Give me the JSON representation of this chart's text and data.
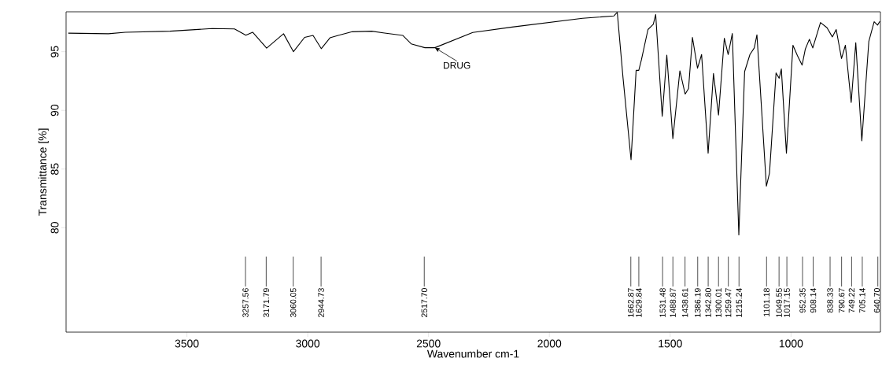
{
  "chart_data": {
    "type": "line",
    "xlabel": "Wavenumber cm-1",
    "ylabel": "Transmittance [%]",
    "xlim": [
      4000,
      630
    ],
    "ylim": [
      71.1,
      98.4
    ],
    "xticks": [
      3500,
      3000,
      2500,
      2000,
      1500,
      1000
    ],
    "yticks": [
      80,
      85,
      90,
      95
    ],
    "grid": false,
    "marker": "none",
    "line_style": "solid",
    "series": [
      {
        "color": "#000000",
        "x": [
          3991,
          3825,
          3755,
          3570,
          3395,
          3303,
          3256,
          3228,
          3170,
          3100,
          3059,
          3013,
          2978,
          2944,
          2908,
          2874,
          2816,
          2735,
          2688,
          2607,
          2572,
          2515,
          2474,
          2317,
          2154,
          1863,
          1733,
          1719,
          1695,
          1662,
          1641,
          1630,
          1619,
          1592,
          1570,
          1560,
          1533,
          1514,
          1489,
          1460,
          1438,
          1424,
          1408,
          1387,
          1370,
          1343,
          1321,
          1300,
          1276,
          1260,
          1243,
          1216,
          1192,
          1170,
          1152,
          1141,
          1102,
          1089,
          1062,
          1049,
          1040,
          1019,
          992,
          973,
          954,
          941,
          924,
          910,
          878,
          851,
          829,
          813,
          791,
          775,
          751,
          732,
          707,
          678,
          656,
          642,
          632
        ],
        "values": [
          96.58,
          96.53,
          96.66,
          96.75,
          96.97,
          96.94,
          96.4,
          96.66,
          95.31,
          96.53,
          95.0,
          96.22,
          96.39,
          95.26,
          96.18,
          96.39,
          96.7,
          96.75,
          96.61,
          96.39,
          95.67,
          95.34,
          95.34,
          96.64,
          97.1,
          97.85,
          98.05,
          98.35,
          92.74,
          85.79,
          93.41,
          93.41,
          94.31,
          96.89,
          97.34,
          98.17,
          89.49,
          94.71,
          87.58,
          93.37,
          91.39,
          91.86,
          96.22,
          93.59,
          94.76,
          86.35,
          93.14,
          89.6,
          96.15,
          94.76,
          96.55,
          79.39,
          93.3,
          94.76,
          95.32,
          96.44,
          83.54,
          84.66,
          93.19,
          92.74,
          93.53,
          86.35,
          95.55,
          94.64,
          93.86,
          95.21,
          96.06,
          95.32,
          97.49,
          97.04,
          96.26,
          96.89,
          94.42,
          95.55,
          90.67,
          95.77,
          87.4,
          95.88,
          97.56,
          97.27,
          97.6
        ]
      }
    ],
    "annotations": [
      {
        "text": "DRUG",
        "x": 2474,
        "y": 95.34
      }
    ],
    "ref_lines": [
      {
        "axis": "x",
        "value": 3257.56,
        "label": "3257.56"
      },
      {
        "axis": "x",
        "value": 3171.79,
        "label": "3171.79"
      },
      {
        "axis": "x",
        "value": 3060.05,
        "label": "3060.05"
      },
      {
        "axis": "x",
        "value": 2944.73,
        "label": "2944.73"
      },
      {
        "axis": "x",
        "value": 2517.7,
        "label": "2517.70"
      },
      {
        "axis": "x",
        "value": 1662.87,
        "label": "1662.87"
      },
      {
        "axis": "x",
        "value": 1629.84,
        "label": "1629.84"
      },
      {
        "axis": "x",
        "value": 1531.48,
        "label": "1531.48"
      },
      {
        "axis": "x",
        "value": 1488.87,
        "label": "1488.87"
      },
      {
        "axis": "x",
        "value": 1438.61,
        "label": "1438.61"
      },
      {
        "axis": "x",
        "value": 1386.19,
        "label": "1386.19"
      },
      {
        "axis": "x",
        "value": 1342.8,
        "label": "1342.80"
      },
      {
        "axis": "x",
        "value": 1300.01,
        "label": "1300.01"
      },
      {
        "axis": "x",
        "value": 1259.47,
        "label": "1259.47"
      },
      {
        "axis": "x",
        "value": 1215.24,
        "label": "1215.24"
      },
      {
        "axis": "x",
        "value": 1101.18,
        "label": "1101.18"
      },
      {
        "axis": "x",
        "value": 1049.55,
        "label": "1049.55"
      },
      {
        "axis": "x",
        "value": 1017.15,
        "label": "1017.15"
      },
      {
        "axis": "x",
        "value": 952.35,
        "label": "952.35"
      },
      {
        "axis": "x",
        "value": 908.14,
        "label": "908.14"
      },
      {
        "axis": "x",
        "value": 838.33,
        "label": "838.33"
      },
      {
        "axis": "x",
        "value": 790.67,
        "label": "790.67"
      },
      {
        "axis": "x",
        "value": 749.22,
        "label": "749.22"
      },
      {
        "axis": "x",
        "value": 705.14,
        "label": "705.14"
      },
      {
        "axis": "x",
        "value": 640.7,
        "label": "640.70"
      }
    ]
  }
}
